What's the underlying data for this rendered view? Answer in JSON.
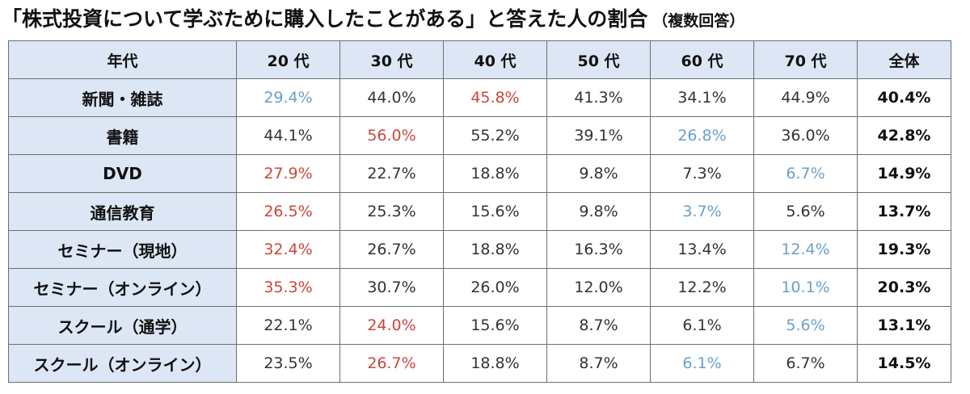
{
  "title": {
    "main": "「株式投資について学ぶために購入したことがある」と答えた人の割合",
    "sub": "（複数回答）"
  },
  "colors": {
    "header_bg": "#dde6f5",
    "highlight_high": "#c9463d",
    "highlight_low": "#6a9fca",
    "border": "#6e6e6e"
  },
  "table": {
    "columns": [
      "年代",
      "20 代",
      "30 代",
      "40 代",
      "50 代",
      "60 代",
      "70 代",
      "全体"
    ],
    "rows": [
      {
        "label": "新聞・雑誌",
        "values": [
          "29.4%",
          "44.0%",
          "45.8%",
          "41.3%",
          "34.1%",
          "44.9%"
        ],
        "marks": [
          "low",
          "",
          "high",
          "",
          "",
          ""
        ],
        "total": "40.4%"
      },
      {
        "label": "書籍",
        "values": [
          "44.1%",
          "56.0%",
          "55.2%",
          "39.1%",
          "26.8%",
          "36.0%"
        ],
        "marks": [
          "",
          "high",
          "",
          "",
          "low",
          ""
        ],
        "total": "42.8%"
      },
      {
        "label": "DVD",
        "values": [
          "27.9%",
          "22.7%",
          "18.8%",
          "9.8%",
          "7.3%",
          "6.7%"
        ],
        "marks": [
          "high",
          "",
          "",
          "",
          "",
          "low"
        ],
        "total": "14.9%"
      },
      {
        "label": "通信教育",
        "values": [
          "26.5%",
          "25.3%",
          "15.6%",
          "9.8%",
          "3.7%",
          "5.6%"
        ],
        "marks": [
          "high",
          "",
          "",
          "",
          "low",
          ""
        ],
        "total": "13.7%"
      },
      {
        "label": "セミナー（現地）",
        "values": [
          "32.4%",
          "26.7%",
          "18.8%",
          "16.3%",
          "13.4%",
          "12.4%"
        ],
        "marks": [
          "high",
          "",
          "",
          "",
          "",
          "low"
        ],
        "total": "19.3%"
      },
      {
        "label": "セミナー（オンライン）",
        "values": [
          "35.3%",
          "30.7%",
          "26.0%",
          "12.0%",
          "12.2%",
          "10.1%"
        ],
        "marks": [
          "high",
          "",
          "",
          "",
          "",
          "low"
        ],
        "total": "20.3%"
      },
      {
        "label": "スクール（通学）",
        "values": [
          "22.1%",
          "24.0%",
          "15.6%",
          "8.7%",
          "6.1%",
          "5.6%"
        ],
        "marks": [
          "",
          "high",
          "",
          "",
          "",
          "low"
        ],
        "total": "13.1%"
      },
      {
        "label": "スクール（オンライン）",
        "values": [
          "23.5%",
          "26.7%",
          "18.8%",
          "8.7%",
          "6.1%",
          "6.7%"
        ],
        "marks": [
          "",
          "high",
          "",
          "",
          "low",
          ""
        ],
        "total": "14.5%"
      }
    ]
  }
}
